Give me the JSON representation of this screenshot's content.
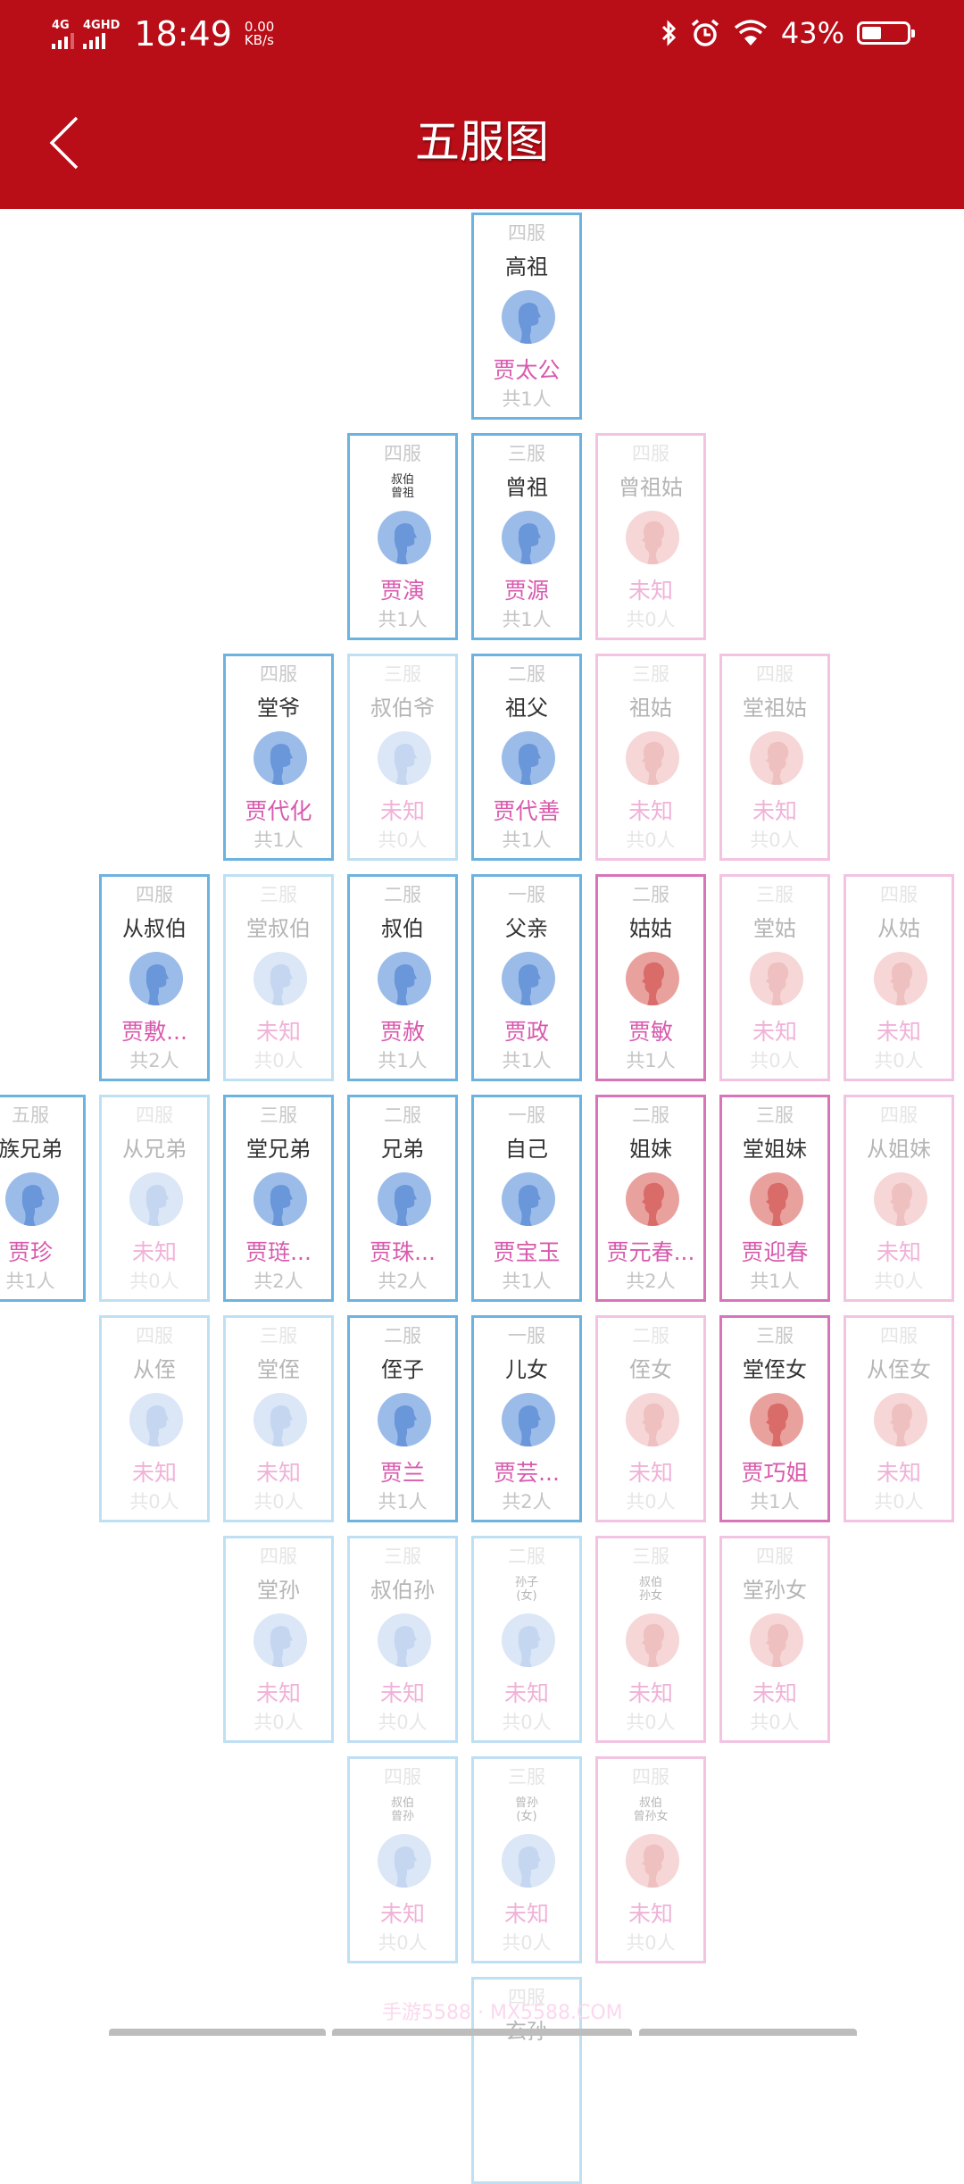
{
  "status_bar": {
    "sim1": "4G",
    "sim2": "4GHD",
    "time": "18:49",
    "speed_value": "0.00",
    "speed_unit": "KB/s",
    "battery": "43%",
    "icons": [
      "signal-icon",
      "bluetooth-icon",
      "alarm-icon",
      "wifi-icon",
      "battery-icon"
    ]
  },
  "app_bar": {
    "title": "五服图",
    "back_icon": "chevron-left-icon"
  },
  "colors": {
    "header_bg": "#b90d17",
    "male_border": "#6cb3e0",
    "female_border": "#d874b8",
    "name_color": "#d85aad",
    "male_avatar": "#9bbce9",
    "female_avatar": "#e9a19e"
  },
  "cards": [
    {
      "col": 4,
      "row": 0,
      "degree": "四服",
      "relation": "高祖",
      "name": "贾太公",
      "count": "共1人",
      "gender": "m",
      "active": true
    },
    {
      "col": 3,
      "row": 1,
      "degree": "四服",
      "relation": "叔伯\n曾祖",
      "name": "贾演",
      "count": "共1人",
      "gender": "m",
      "active": true,
      "small": true
    },
    {
      "col": 4,
      "row": 1,
      "degree": "三服",
      "relation": "曾祖",
      "name": "贾源",
      "count": "共1人",
      "gender": "m",
      "active": true
    },
    {
      "col": 5,
      "row": 1,
      "degree": "四服",
      "relation": "曾祖姑",
      "name": "未知",
      "count": "共0人",
      "gender": "f",
      "active": false
    },
    {
      "col": 2,
      "row": 2,
      "degree": "四服",
      "relation": "堂爷",
      "name": "贾代化",
      "count": "共1人",
      "gender": "m",
      "active": true
    },
    {
      "col": 3,
      "row": 2,
      "degree": "三服",
      "relation": "叔伯爷",
      "name": "未知",
      "count": "共0人",
      "gender": "m",
      "active": false
    },
    {
      "col": 4,
      "row": 2,
      "degree": "二服",
      "relation": "祖父",
      "name": "贾代善",
      "count": "共1人",
      "gender": "m",
      "active": true
    },
    {
      "col": 5,
      "row": 2,
      "degree": "三服",
      "relation": "祖姑",
      "name": "未知",
      "count": "共0人",
      "gender": "f",
      "active": false
    },
    {
      "col": 6,
      "row": 2,
      "degree": "四服",
      "relation": "堂祖姑",
      "name": "未知",
      "count": "共0人",
      "gender": "f",
      "active": false
    },
    {
      "col": 1,
      "row": 3,
      "degree": "四服",
      "relation": "从叔伯",
      "name": "贾敷...",
      "count": "共2人",
      "gender": "m",
      "active": true
    },
    {
      "col": 2,
      "row": 3,
      "degree": "三服",
      "relation": "堂叔伯",
      "name": "未知",
      "count": "共0人",
      "gender": "m",
      "active": false
    },
    {
      "col": 3,
      "row": 3,
      "degree": "二服",
      "relation": "叔伯",
      "name": "贾赦",
      "count": "共1人",
      "gender": "m",
      "active": true
    },
    {
      "col": 4,
      "row": 3,
      "degree": "一服",
      "relation": "父亲",
      "name": "贾政",
      "count": "共1人",
      "gender": "m",
      "active": true
    },
    {
      "col": 5,
      "row": 3,
      "degree": "二服",
      "relation": "姑姑",
      "name": "贾敏",
      "count": "共1人",
      "gender": "f",
      "active": true
    },
    {
      "col": 6,
      "row": 3,
      "degree": "三服",
      "relation": "堂姑",
      "name": "未知",
      "count": "共0人",
      "gender": "f",
      "active": false
    },
    {
      "col": 7,
      "row": 3,
      "degree": "四服",
      "relation": "从姑",
      "name": "未知",
      "count": "共0人",
      "gender": "f",
      "active": false
    },
    {
      "col": 0,
      "row": 4,
      "degree": "五服",
      "relation": "族兄弟",
      "name": "贾珍",
      "count": "共1人",
      "gender": "m",
      "active": true
    },
    {
      "col": 1,
      "row": 4,
      "degree": "四服",
      "relation": "从兄弟",
      "name": "未知",
      "count": "共0人",
      "gender": "m",
      "active": false
    },
    {
      "col": 2,
      "row": 4,
      "degree": "三服",
      "relation": "堂兄弟",
      "name": "贾琏...",
      "count": "共2人",
      "gender": "m",
      "active": true
    },
    {
      "col": 3,
      "row": 4,
      "degree": "二服",
      "relation": "兄弟",
      "name": "贾珠...",
      "count": "共2人",
      "gender": "m",
      "active": true
    },
    {
      "col": 4,
      "row": 4,
      "degree": "一服",
      "relation": "自己",
      "name": "贾宝玉",
      "count": "共1人",
      "gender": "m",
      "active": true
    },
    {
      "col": 5,
      "row": 4,
      "degree": "二服",
      "relation": "姐妹",
      "name": "贾元春...",
      "count": "共2人",
      "gender": "f",
      "active": true
    },
    {
      "col": 6,
      "row": 4,
      "degree": "三服",
      "relation": "堂姐妹",
      "name": "贾迎春",
      "count": "共1人",
      "gender": "f",
      "active": true
    },
    {
      "col": 7,
      "row": 4,
      "degree": "四服",
      "relation": "从姐妹",
      "name": "未知",
      "count": "共0人",
      "gender": "f",
      "active": false
    },
    {
      "col": 1,
      "row": 5,
      "degree": "四服",
      "relation": "从侄",
      "name": "未知",
      "count": "共0人",
      "gender": "m",
      "active": false
    },
    {
      "col": 2,
      "row": 5,
      "degree": "三服",
      "relation": "堂侄",
      "name": "未知",
      "count": "共0人",
      "gender": "m",
      "active": false
    },
    {
      "col": 3,
      "row": 5,
      "degree": "二服",
      "relation": "侄子",
      "name": "贾兰",
      "count": "共1人",
      "gender": "m",
      "active": true
    },
    {
      "col": 4,
      "row": 5,
      "degree": "一服",
      "relation": "儿女",
      "name": "贾芸...",
      "count": "共2人",
      "gender": "m",
      "active": true
    },
    {
      "col": 5,
      "row": 5,
      "degree": "二服",
      "relation": "侄女",
      "name": "未知",
      "count": "共0人",
      "gender": "f",
      "active": false
    },
    {
      "col": 6,
      "row": 5,
      "degree": "三服",
      "relation": "堂侄女",
      "name": "贾巧姐",
      "count": "共1人",
      "gender": "f",
      "active": true
    },
    {
      "col": 7,
      "row": 5,
      "degree": "四服",
      "relation": "从侄女",
      "name": "未知",
      "count": "共0人",
      "gender": "f",
      "active": false
    },
    {
      "col": 2,
      "row": 6,
      "degree": "四服",
      "relation": "堂孙",
      "name": "未知",
      "count": "共0人",
      "gender": "m",
      "active": false
    },
    {
      "col": 3,
      "row": 6,
      "degree": "三服",
      "relation": "叔伯孙",
      "name": "未知",
      "count": "共0人",
      "gender": "m",
      "active": false
    },
    {
      "col": 4,
      "row": 6,
      "degree": "二服",
      "relation": "孙子\n(女)",
      "name": "未知",
      "count": "共0人",
      "gender": "m",
      "active": false,
      "small": true
    },
    {
      "col": 5,
      "row": 6,
      "degree": "三服",
      "relation": "叔伯\n孙女",
      "name": "未知",
      "count": "共0人",
      "gender": "f",
      "active": false,
      "small": true
    },
    {
      "col": 6,
      "row": 6,
      "degree": "四服",
      "relation": "堂孙女",
      "name": "未知",
      "count": "共0人",
      "gender": "f",
      "active": false
    },
    {
      "col": 3,
      "row": 7,
      "degree": "四服",
      "relation": "叔伯\n曾孙",
      "name": "未知",
      "count": "共0人",
      "gender": "m",
      "active": false,
      "small": true
    },
    {
      "col": 4,
      "row": 7,
      "degree": "三服",
      "relation": "曾孙\n(女)",
      "name": "未知",
      "count": "共0人",
      "gender": "m",
      "active": false,
      "small": true
    },
    {
      "col": 5,
      "row": 7,
      "degree": "四服",
      "relation": "叔伯\n曾孙女",
      "name": "未知",
      "count": "共0人",
      "gender": "f",
      "active": false,
      "small": true
    },
    {
      "col": 4,
      "row": 8,
      "degree": "四服",
      "relation": "玄孙",
      "name": "",
      "count": "",
      "gender": "m",
      "active": false
    }
  ],
  "watermark": "手游5588 · MX5588.COM"
}
